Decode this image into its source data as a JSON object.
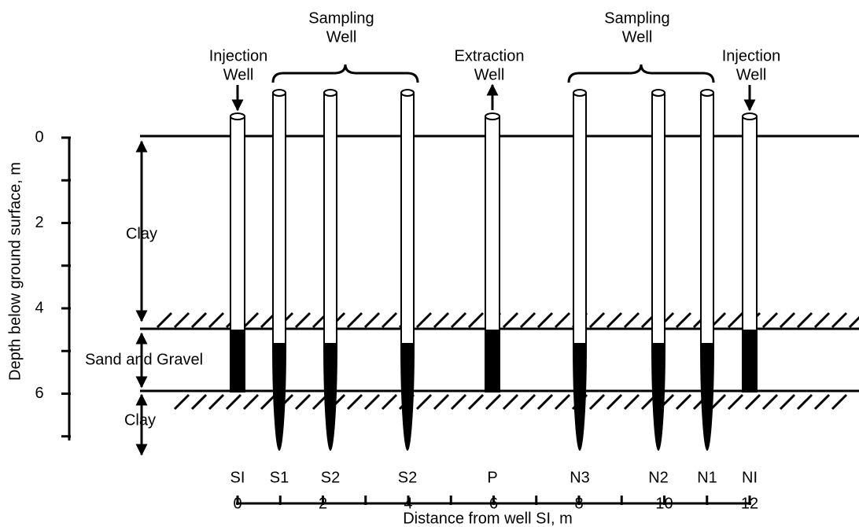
{
  "top_labels": [
    {
      "line1": "Injection",
      "line2": "Well"
    },
    {
      "line1": "Sampling",
      "line2": "Well"
    },
    {
      "line1": "Extraction",
      "line2": "Well"
    },
    {
      "line1": "Sampling",
      "line2": "Well"
    },
    {
      "line1": "Injection",
      "line2": "Well"
    }
  ],
  "wells": [
    "SI",
    "S1",
    "S2",
    "S2",
    "P",
    "N3",
    "N2",
    "N1",
    "NI"
  ],
  "layers": [
    "Clay",
    "Sand and Gravel",
    "Clay"
  ],
  "depth_axis": {
    "label": "Depth below ground surface, m",
    "ticks": [
      "0",
      "2",
      "4",
      "6"
    ]
  },
  "distance_axis": {
    "label": "Distance from well SI, m",
    "ticks": [
      "0",
      "2",
      "4",
      "6",
      "8",
      "10",
      "12"
    ]
  }
}
